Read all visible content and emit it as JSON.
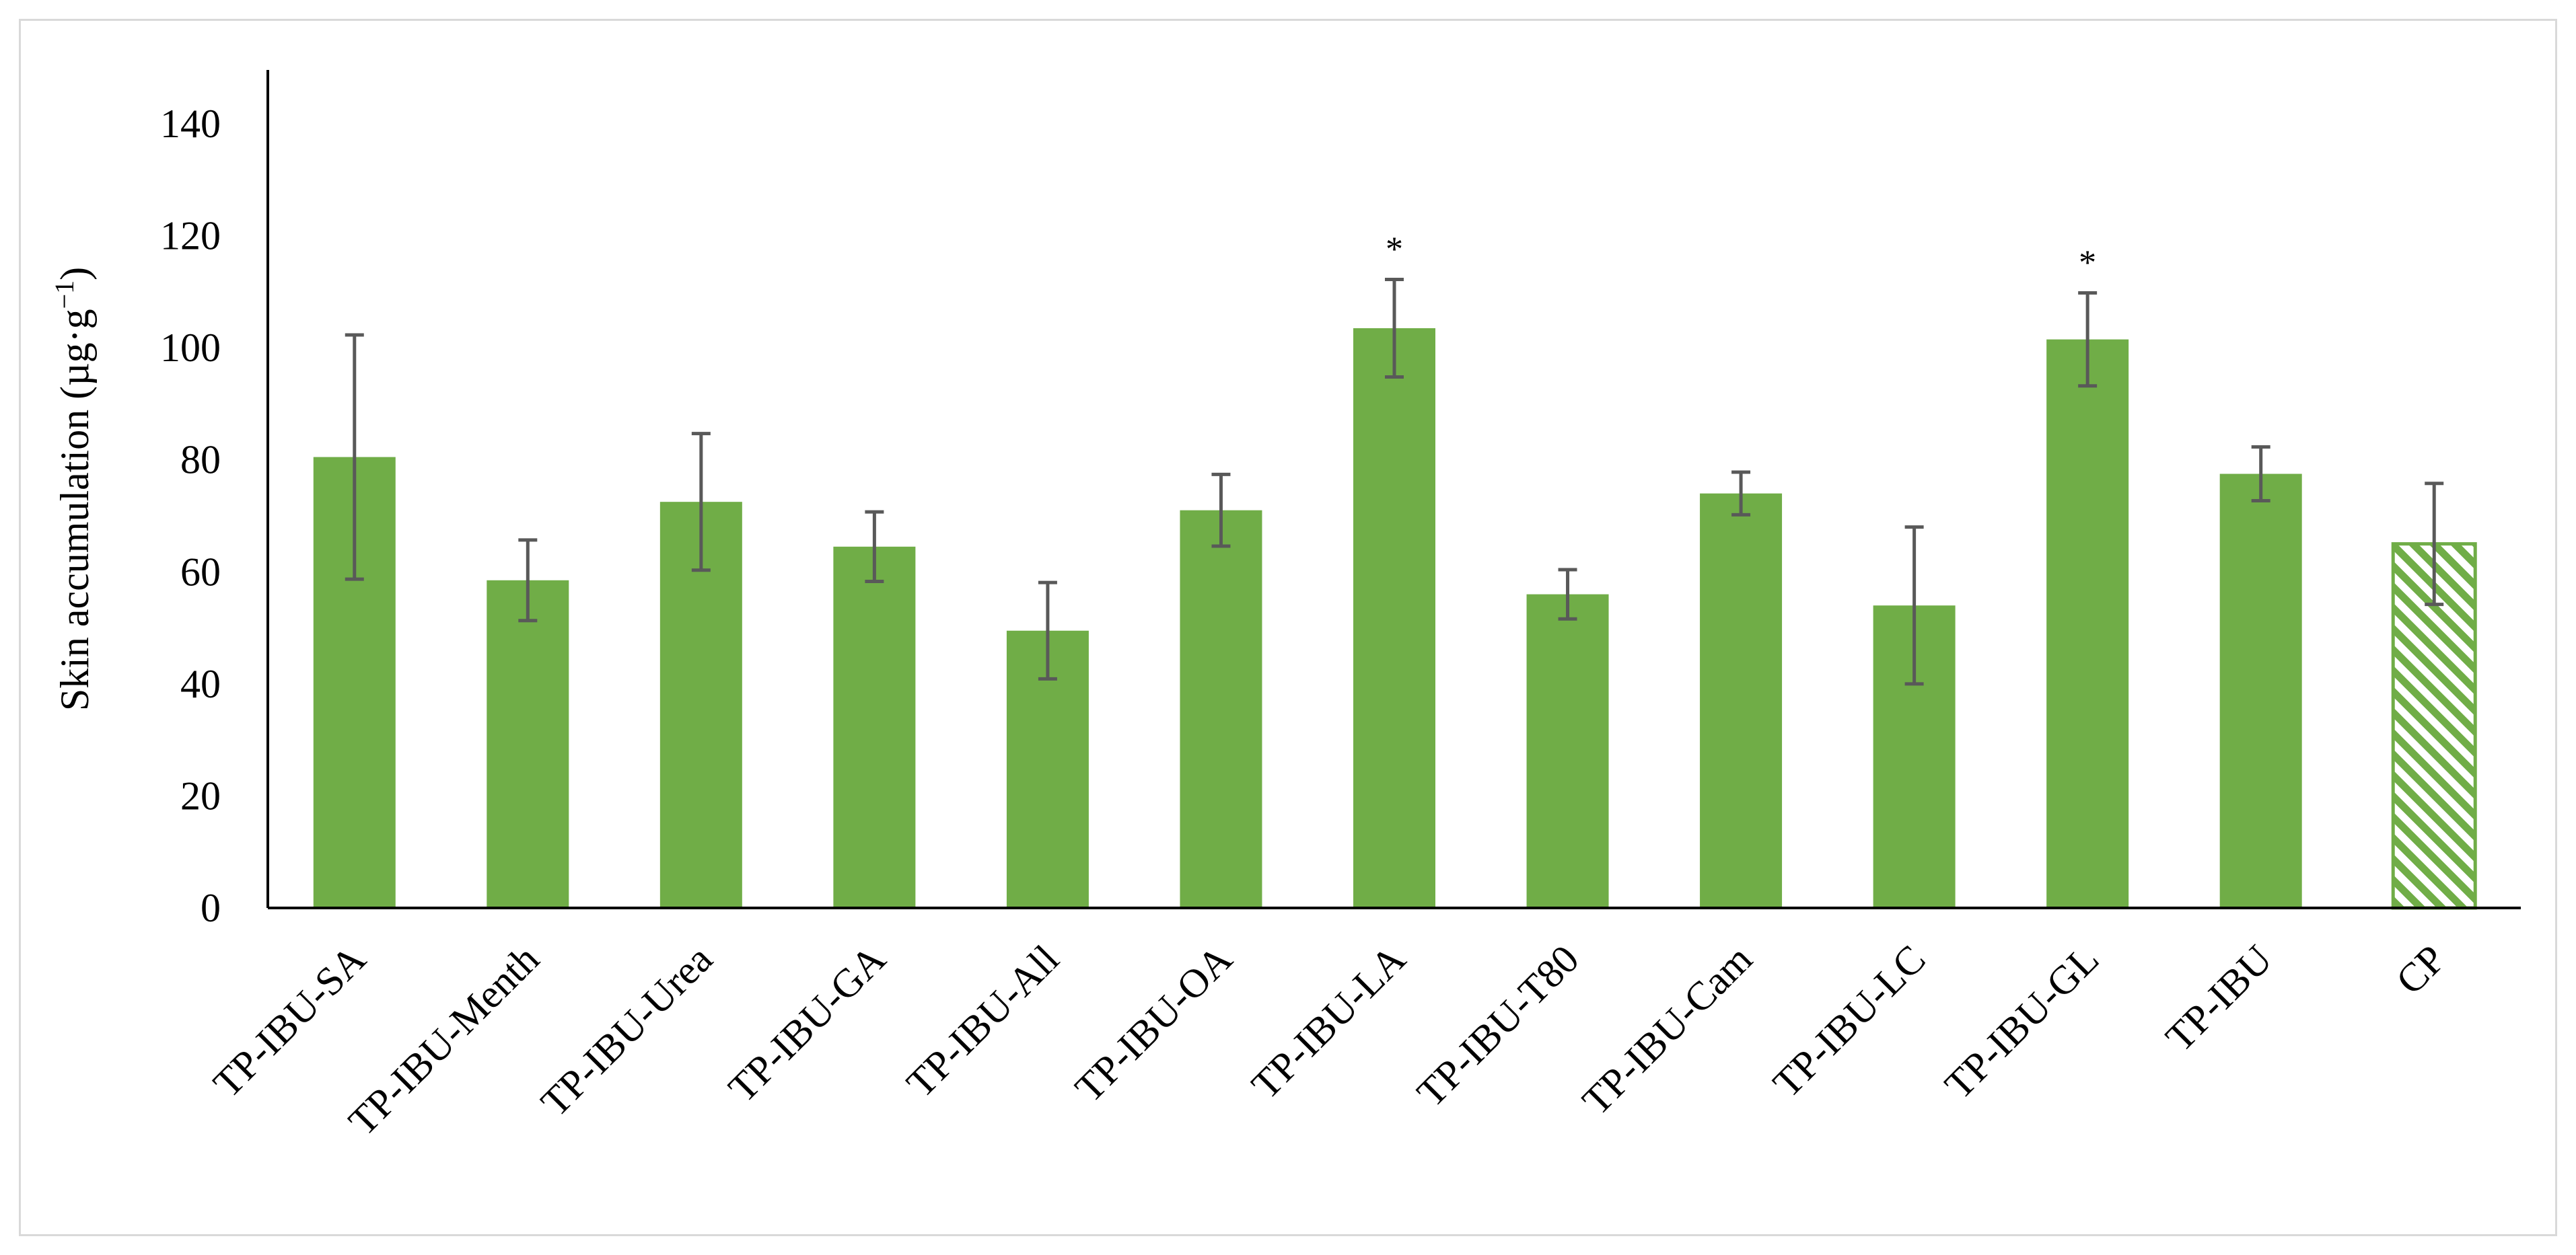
{
  "chart_data": {
    "type": "bar",
    "title": "",
    "xlabel": "",
    "ylabel": "Skin accumulation (µg·g",
    "ylabel_superscript": "−1",
    "ylabel_suffix": ")",
    "ylim": [
      0,
      140
    ],
    "yticks": [
      0,
      20,
      40,
      60,
      80,
      100,
      120,
      140
    ],
    "grid": false,
    "legend": "none",
    "bar_color": "#70ad47",
    "error_bar_color": "#595959",
    "categories": [
      "TP-IBU-SA",
      "TP-IBU-Menth",
      "TP-IBU-Urea",
      "TP-IBU-GA",
      "TP-IBU-All",
      "TP-IBU-OA",
      "TP-IBU-LA",
      "TP-IBU-T80",
      "TP-IBU-Cam",
      "TP-IBU-LC",
      "TP-IBU-GL",
      "TP-IBU",
      "CP"
    ],
    "values": [
      80.5,
      58.5,
      72.5,
      64.5,
      49.5,
      71,
      103.5,
      56,
      74,
      54,
      101.5,
      77.5,
      65
    ],
    "errors": [
      21.8,
      7.2,
      12.2,
      6.2,
      8.6,
      6.4,
      8.7,
      4.4,
      3.8,
      14,
      8.3,
      4.8,
      10.8
    ],
    "significant": [
      false,
      false,
      false,
      false,
      false,
      false,
      true,
      false,
      false,
      false,
      true,
      false,
      false
    ],
    "significance_marker": "*",
    "hatched": [
      false,
      false,
      false,
      false,
      false,
      false,
      false,
      false,
      false,
      false,
      false,
      false,
      true
    ]
  }
}
